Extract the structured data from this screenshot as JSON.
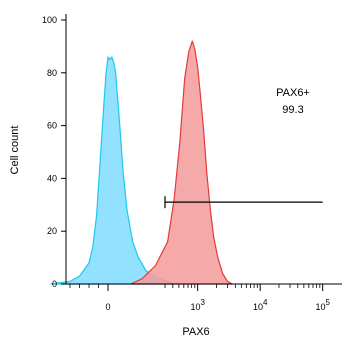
{
  "chart_data": {
    "type": "area",
    "title": "",
    "xlabel": "PAX6",
    "ylabel": "Cell count",
    "x_scale": "biexponential",
    "ylim": [
      0,
      100
    ],
    "y_ticks": [
      0,
      20,
      40,
      60,
      80,
      100
    ],
    "x_ticks": [
      {
        "value": 0,
        "label": "0"
      },
      {
        "value": 1000,
        "label": "10",
        "exp": "3"
      },
      {
        "value": 10000,
        "label": "10",
        "exp": "4"
      },
      {
        "value": 100000,
        "label": "10",
        "exp": "5"
      }
    ],
    "series": [
      {
        "color": "#1ec8f0",
        "fill": "#7fdcff",
        "x": [
          -300,
          -200,
          -150,
          -100,
          -80,
          -60,
          -40,
          -20,
          -10,
          0,
          10,
          20,
          30,
          40,
          60,
          80,
          100,
          130,
          160,
          200,
          260,
          330,
          420
        ],
        "y": [
          0,
          1,
          3,
          8,
          14,
          26,
          48,
          70,
          80,
          86,
          85,
          86,
          84,
          80,
          62,
          42,
          28,
          16,
          10,
          5,
          2,
          1,
          0
        ]
      },
      {
        "color": "#e33a3a",
        "fill": "#f59a9a",
        "x": [
          120,
          180,
          250,
          330,
          420,
          520,
          620,
          720,
          820,
          900,
          1000,
          1100,
          1250,
          1400,
          1600,
          1800,
          2100,
          2500,
          3000,
          3600
        ],
        "y": [
          0,
          2,
          7,
          16,
          32,
          54,
          78,
          88,
          92,
          89,
          82,
          72,
          58,
          42,
          28,
          18,
          10,
          4,
          1,
          0
        ]
      }
    ],
    "gate": {
      "name": "PAX6+",
      "percent": "99.3",
      "x_start": 300,
      "x_end": 100000,
      "y": 31
    }
  }
}
